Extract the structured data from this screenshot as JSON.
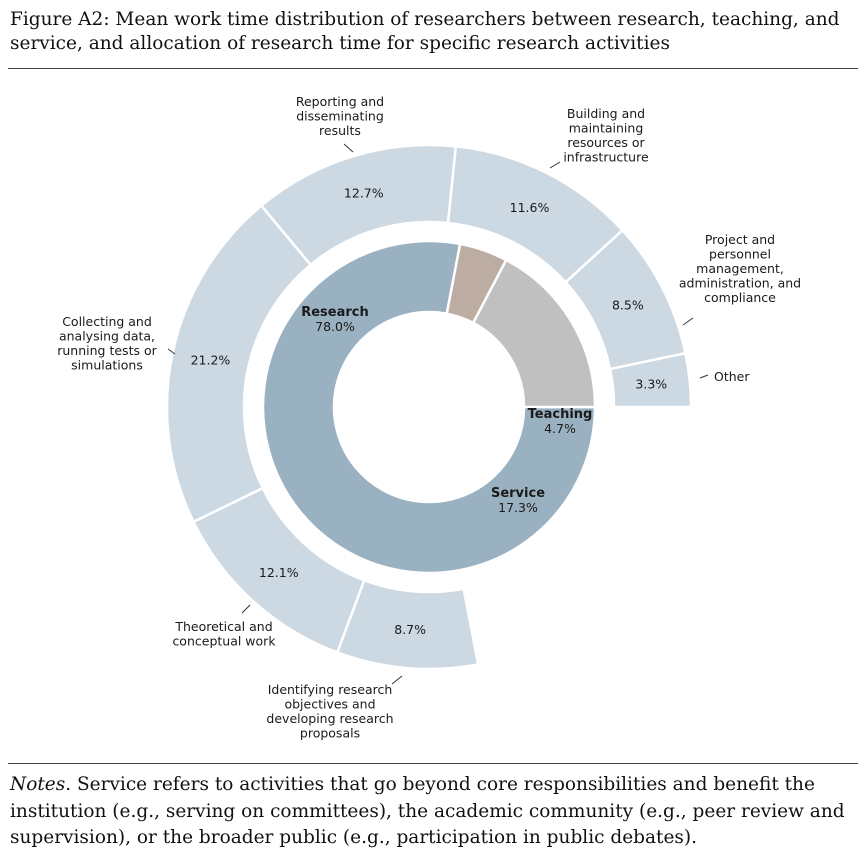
{
  "caption": "Figure A2: Mean work time distribution of researchers between research, teaching, and service, and allocation of research time for specific research activities",
  "notes": {
    "lead": "Notes.",
    "text": "Service refers to activities that go beyond core responsibilities and benefit the institution (e.g., serving on committees), the academic community (e.g., peer review and supervision), or the broader public (e.g., participation in public debates)."
  },
  "chart_data": {
    "type": "pie",
    "variant": "nested-donut",
    "inner": [
      {
        "name": "Research",
        "value": 78.0,
        "label": "78.0%",
        "color": "#9ab1c1"
      },
      {
        "name": "Teaching",
        "value": 4.7,
        "label": "4.7%",
        "color": "#bcaca2"
      },
      {
        "name": "Service",
        "value": 17.3,
        "label": "17.3%",
        "color": "#c0c0c0"
      }
    ],
    "outer": [
      {
        "name": "Other",
        "value": 3.3,
        "label": "3.3%",
        "lines": [
          "Other"
        ]
      },
      {
        "name": "Project and personnel management, administration, and compliance",
        "value": 8.5,
        "label": "8.5%",
        "lines": [
          "Project and",
          "personnel",
          "management,",
          "administration, and",
          "compliance"
        ]
      },
      {
        "name": "Building and maintaining resources or infrastructure",
        "value": 11.6,
        "label": "11.6%",
        "lines": [
          "Building and",
          "maintaining",
          "resources or",
          "infrastructure"
        ]
      },
      {
        "name": "Reporting and disseminating results",
        "value": 12.7,
        "label": "12.7%",
        "lines": [
          "Reporting and",
          "disseminating",
          "results"
        ]
      },
      {
        "name": "Collecting and analysing data, running tests or simulations",
        "value": 21.2,
        "label": "21.2%",
        "lines": [
          "Collecting and",
          "analysing data,",
          "running tests or",
          "simulations"
        ]
      },
      {
        "name": "Theoretical and conceptual work",
        "value": 12.1,
        "label": "12.1%",
        "lines": [
          "Theoretical and",
          "conceptual work"
        ]
      },
      {
        "name": "Identifying research objectives and developing research proposals",
        "value": 8.7,
        "label": "8.7%",
        "lines": [
          "Identifying research",
          "objectives and",
          "developing research",
          "proposals"
        ]
      }
    ],
    "outer_color": "#ccd8e2"
  }
}
